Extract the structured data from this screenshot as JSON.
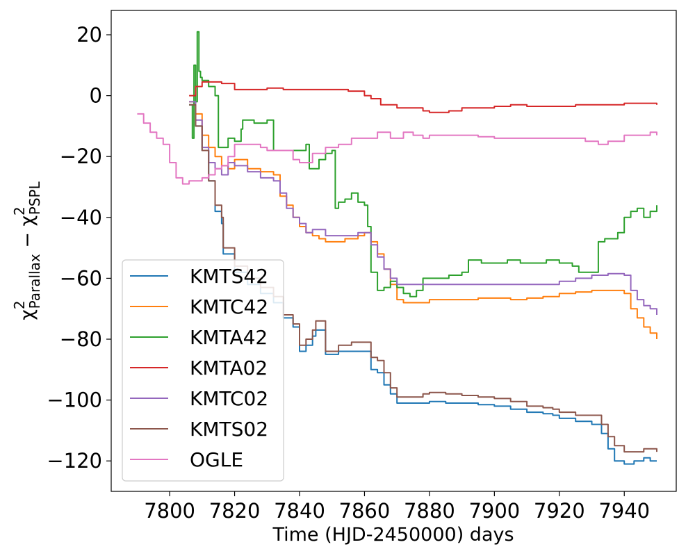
{
  "chart_data": {
    "type": "line",
    "xlabel": "Time (HJD-2450000) days",
    "ylabel_parts": [
      "χ",
      "2",
      "Parallax",
      " − χ",
      "2",
      "PSPL"
    ],
    "xlim": [
      7782,
      7956
    ],
    "ylim": [
      -130,
      28
    ],
    "xticks": [
      7800,
      7820,
      7840,
      7860,
      7880,
      7900,
      7920,
      7940
    ],
    "yticks": [
      20,
      0,
      -20,
      -40,
      -60,
      -80,
      -100,
      -120
    ],
    "xtick_labels": [
      "7800",
      "7820",
      "7840",
      "7860",
      "7880",
      "7900",
      "7920",
      "7940"
    ],
    "ytick_labels": [
      "20",
      "0",
      "−20",
      "−40",
      "−60",
      "−80",
      "−100",
      "−120"
    ],
    "grid": false,
    "legend_position": "lower-left",
    "series": [
      {
        "name": "KMTS42",
        "color": "#1f77b4",
        "x": [
          7806,
          7808,
          7810,
          7812,
          7814,
          7816,
          7816.5,
          7820,
          7824,
          7828,
          7832,
          7835,
          7838,
          7840,
          7842,
          7844,
          7845,
          7848,
          7852,
          7856,
          7860,
          7862,
          7864,
          7866,
          7868,
          7870,
          7874,
          7878,
          7880,
          7885,
          7890,
          7895,
          7900,
          7905,
          7910,
          7915,
          7918,
          7920,
          7925,
          7930,
          7933,
          7935,
          7937,
          7940,
          7943,
          7946,
          7948,
          7950
        ],
        "y": [
          -3,
          -10,
          -18,
          -28,
          -38,
          -42,
          -52,
          -58,
          -62,
          -65,
          -68,
          -73,
          -76,
          -84,
          -82,
          -79,
          -77,
          -85,
          -84,
          -84,
          -84,
          -90,
          -91,
          -95,
          -98,
          -101,
          -101,
          -101,
          -100.5,
          -101,
          -101,
          -101.5,
          -102,
          -103,
          -104,
          -104.5,
          -105,
          -106,
          -107,
          -108,
          -111,
          -116,
          -120,
          -121,
          -120,
          -119,
          -120,
          -120
        ]
      },
      {
        "name": "KMTC42",
        "color": "#ff7f0e",
        "x": [
          7806,
          7808,
          7810,
          7812,
          7814,
          7816,
          7818,
          7820,
          7824,
          7828,
          7832,
          7834,
          7836,
          7838,
          7840,
          7842,
          7844,
          7846,
          7848,
          7850,
          7852,
          7854,
          7856,
          7858,
          7860,
          7862,
          7864,
          7866,
          7868,
          7870,
          7872,
          7874,
          7876,
          7878,
          7880,
          7885,
          7890,
          7895,
          7900,
          7905,
          7910,
          7915,
          7920,
          7925,
          7930,
          7935,
          7940,
          7942,
          7944,
          7946,
          7948,
          7950
        ],
        "y": [
          -2,
          -6,
          -13,
          -17,
          -20,
          -23,
          -24,
          -21,
          -24,
          -25,
          -26,
          -33,
          -36,
          -40,
          -43,
          -45,
          -46,
          -47,
          -48,
          -48,
          -48,
          -47,
          -47,
          -46,
          -45,
          -48,
          -52,
          -57,
          -62,
          -67,
          -68,
          -68,
          -68,
          -68,
          -67,
          -67,
          -67,
          -66.5,
          -66.5,
          -67,
          -66.5,
          -66,
          -65,
          -64.5,
          -64,
          -64,
          -65,
          -70,
          -73,
          -76,
          -78,
          -80
        ]
      },
      {
        "name": "KMTA42",
        "color": "#2ca02c",
        "x": [
          7806,
          7807,
          7807.5,
          7808,
          7808.5,
          7809,
          7809.5,
          7810,
          7812,
          7814,
          7815,
          7818,
          7820,
          7822,
          7822.5,
          7826,
          7830,
          7832,
          7840,
          7842,
          7843,
          7844,
          7846,
          7848,
          7850,
          7851,
          7852,
          7854,
          7856,
          7858,
          7860,
          7861,
          7862,
          7864,
          7866,
          7868,
          7870,
          7872,
          7874,
          7876,
          7878,
          7880,
          7882,
          7886,
          7890,
          7892,
          7896,
          7900,
          7904,
          7908,
          7912,
          7916,
          7920,
          7924,
          7926,
          7928,
          7930,
          7932,
          7934,
          7936,
          7938,
          7940,
          7942,
          7944,
          7946,
          7948,
          7950
        ],
        "y": [
          -3,
          -14,
          10,
          -2,
          21,
          8,
          6,
          5,
          3,
          0,
          -17,
          -14,
          -15,
          -11,
          -8,
          -9,
          -8,
          -18,
          -18,
          -16,
          -24,
          -24,
          -21,
          -19,
          -18,
          -37,
          -35,
          -34,
          -32,
          -35,
          -36,
          -43,
          -58,
          -64,
          -63,
          -61,
          -63,
          -65,
          -66,
          -64,
          -60,
          -60,
          -60,
          -59,
          -58,
          -54,
          -55,
          -55,
          -54,
          -55,
          -55,
          -54,
          -55,
          -56,
          -58,
          -58,
          -58,
          -48,
          -47,
          -47,
          -45,
          -40,
          -38,
          -37,
          -40,
          -38,
          -36
        ]
      },
      {
        "name": "KMTA02",
        "color": "#d62728",
        "x": [
          7806,
          7808,
          7810,
          7814,
          7816,
          7820,
          7825,
          7830,
          7835,
          7840,
          7845,
          7850,
          7855,
          7860,
          7862,
          7865,
          7870,
          7875,
          7878,
          7880,
          7883,
          7886,
          7890,
          7895,
          7900,
          7905,
          7910,
          7915,
          7920,
          7925,
          7930,
          7935,
          7940,
          7945,
          7950
        ],
        "y": [
          0,
          3,
          4.5,
          4.5,
          4,
          2,
          2,
          2.5,
          2,
          2,
          2,
          2,
          1.5,
          0,
          -1,
          -3,
          -4,
          -4,
          -5,
          -5.5,
          -5.5,
          -5,
          -4,
          -4,
          -3.5,
          -3,
          -3.5,
          -3.5,
          -3.5,
          -3,
          -3,
          -3,
          -2.5,
          -2.5,
          -3
        ]
      },
      {
        "name": "KMTC02",
        "color": "#9467bd",
        "x": [
          7806,
          7808,
          7810,
          7812,
          7814,
          7816,
          7818,
          7820,
          7824,
          7828,
          7832,
          7834,
          7836,
          7838,
          7840,
          7842,
          7844,
          7846,
          7848,
          7850,
          7852,
          7854,
          7856,
          7858,
          7860,
          7862,
          7864,
          7866,
          7868,
          7870,
          7872,
          7874,
          7876,
          7878,
          7880,
          7885,
          7890,
          7895,
          7900,
          7905,
          7910,
          7915,
          7920,
          7925,
          7930,
          7935,
          7940,
          7942,
          7944,
          7946,
          7948,
          7950
        ],
        "y": [
          -2,
          -8,
          -17,
          -22,
          -24,
          -26,
          -22,
          -23,
          -25,
          -27,
          -28,
          -32,
          -37,
          -40,
          -42,
          -45,
          -44,
          -44,
          -46,
          -46,
          -46,
          -46,
          -46,
          -45,
          -45,
          -49,
          -53,
          -57,
          -60,
          -62,
          -62,
          -62,
          -62,
          -62,
          -62,
          -62,
          -62,
          -62,
          -62,
          -62,
          -62,
          -62,
          -61,
          -60,
          -59,
          -58.5,
          -59,
          -64,
          -67,
          -69,
          -70,
          -72
        ]
      },
      {
        "name": "KMTS02",
        "color": "#8c564b",
        "x": [
          7806,
          7808,
          7810,
          7812,
          7814,
          7816,
          7816.5,
          7820,
          7824,
          7828,
          7832,
          7835,
          7838,
          7840,
          7842,
          7844,
          7845,
          7848,
          7852,
          7856,
          7860,
          7862,
          7864,
          7866,
          7868,
          7870,
          7874,
          7878,
          7880,
          7885,
          7890,
          7895,
          7900,
          7905,
          7910,
          7915,
          7918,
          7920,
          7925,
          7930,
          7933,
          7935,
          7937,
          7940,
          7943,
          7946,
          7948,
          7950
        ],
        "y": [
          -3,
          -10,
          -18,
          -28,
          -36,
          -40,
          -50,
          -56,
          -60,
          -63,
          -66,
          -72,
          -75,
          -82,
          -80,
          -77,
          -74,
          -84,
          -82,
          -81,
          -81,
          -86,
          -87,
          -91,
          -96,
          -99,
          -99,
          -98,
          -97.5,
          -98,
          -98.5,
          -99,
          -99.5,
          -100.5,
          -102,
          -102.5,
          -103,
          -104,
          -105,
          -105,
          -108,
          -112,
          -115,
          -117,
          -117,
          -116,
          -116,
          -117
        ]
      },
      {
        "name": "OGLE",
        "color": "#e377c2",
        "x": [
          7790,
          7792,
          7794,
          7796,
          7798,
          7800,
          7802,
          7804,
          7806,
          7808,
          7810,
          7812,
          7814,
          7816,
          7818,
          7820,
          7824,
          7828,
          7830,
          7834,
          7838,
          7840,
          7844,
          7848,
          7852,
          7856,
          7860,
          7864,
          7868,
          7872,
          7875,
          7878,
          7880,
          7885,
          7890,
          7895,
          7900,
          7905,
          7910,
          7915,
          7920,
          7925,
          7928,
          7932,
          7935,
          7940,
          7945,
          7948,
          7950
        ],
        "y": [
          -6,
          -9,
          -12,
          -14,
          -16,
          -22,
          -27,
          -29,
          -28,
          -28,
          -27,
          -26,
          -24,
          -23,
          -20,
          -16,
          -16,
          -17,
          -18,
          -18,
          -21,
          -22,
          -19,
          -17,
          -16,
          -14,
          -14,
          -12,
          -14,
          -12,
          -13,
          -14,
          -13,
          -13,
          -13,
          -13.5,
          -14,
          -14,
          -14,
          -14,
          -14,
          -14,
          -15,
          -16,
          -15,
          -13,
          -13,
          -12,
          -13
        ]
      }
    ]
  }
}
